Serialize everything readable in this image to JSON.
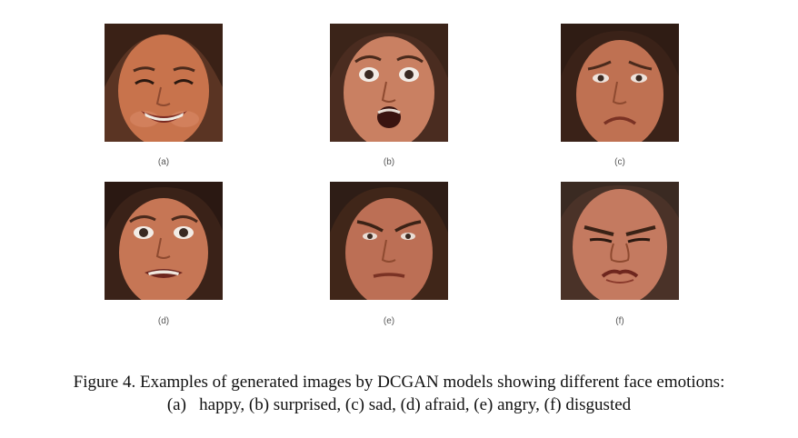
{
  "figure": {
    "panels": [
      {
        "label": "(a)",
        "emotion": "happy",
        "skin": "#c8734c",
        "hair": "#3a2116"
      },
      {
        "label": "(b)",
        "emotion": "surprised",
        "skin": "#c98062",
        "hair": "#3b2419"
      },
      {
        "label": "(c)",
        "emotion": "sad",
        "skin": "#bf7152",
        "hair": "#2f1c14"
      },
      {
        "label": "(d)",
        "emotion": "afraid",
        "skin": "#c67655",
        "hair": "#2a1812"
      },
      {
        "label": "(e)",
        "emotion": "angry",
        "skin": "#bc6f55",
        "hair": "#2e1d16"
      },
      {
        "label": "(f)",
        "emotion": "disgusted",
        "skin": "#c47a60",
        "hair": "#3a2a22"
      }
    ],
    "caption_line1": "Figure 4. Examples of generated images by DCGAN models showing different face emotions:",
    "caption_line2": "(a)   happy, (b) surprised, (c) sad, (d) afraid, (e) angry, (f) disgusted"
  }
}
